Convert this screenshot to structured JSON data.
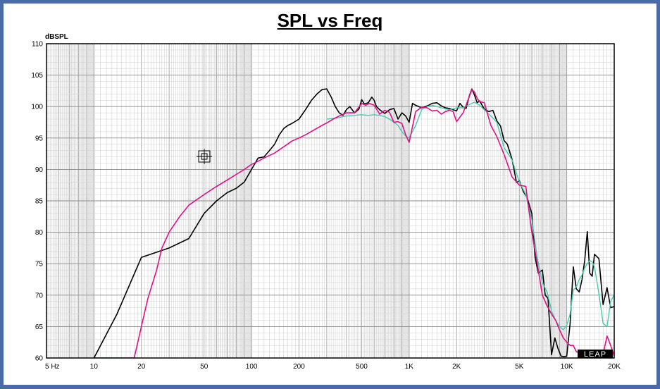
{
  "chart_data": {
    "type": "line",
    "title": "SPL vs Freq",
    "ylabel": "dBSPL",
    "xlabel": "",
    "xscale": "log",
    "xlim": [
      5,
      20000
    ],
    "ylim": [
      60,
      110
    ],
    "grid": true,
    "y_ticks": [
      60,
      65,
      70,
      75,
      80,
      85,
      90,
      95,
      100,
      105,
      110
    ],
    "x_ticks": [
      {
        "value": 5,
        "label": "5  Hz"
      },
      {
        "value": 10,
        "label": "10"
      },
      {
        "value": 20,
        "label": "20"
      },
      {
        "value": 50,
        "label": "50"
      },
      {
        "value": 100,
        "label": "100"
      },
      {
        "value": 200,
        "label": "200"
      },
      {
        "value": 500,
        "label": "500"
      },
      {
        "value": 1000,
        "label": "1K"
      },
      {
        "value": 2000,
        "label": "2K"
      },
      {
        "value": 5000,
        "label": "5K"
      },
      {
        "value": 10000,
        "label": "10K"
      },
      {
        "value": 20000,
        "label": "20K"
      }
    ],
    "series": [
      {
        "color": "#000000",
        "x": [
          10,
          14,
          20,
          30,
          40,
          50,
          60,
          70,
          80,
          90,
          100,
          110,
          120,
          130,
          140,
          150,
          160,
          170,
          180,
          200,
          220,
          240,
          260,
          280,
          300,
          320,
          340,
          360,
          380,
          400,
          420,
          450,
          480,
          500,
          520,
          550,
          580,
          600,
          620,
          650,
          700,
          750,
          800,
          850,
          900,
          950,
          1000,
          1050,
          1100,
          1200,
          1300,
          1400,
          1500,
          1600,
          1700,
          1800,
          2000,
          2100,
          2200,
          2300,
          2400,
          2500,
          2600,
          2700,
          2800,
          3000,
          3200,
          3400,
          3600,
          3800,
          4000,
          4200,
          4500,
          4800,
          5000,
          5300,
          5600,
          6000,
          6300,
          6600,
          7000,
          7300,
          7600,
          8000,
          8400,
          8800,
          9200,
          9600,
          10000,
          10500,
          11000,
          11500,
          12000,
          12500,
          13000,
          13500,
          14000,
          14500,
          15000,
          16000,
          17000,
          18000,
          19000,
          20000
        ],
        "y": [
          60,
          67,
          76,
          77.5,
          79,
          83,
          85,
          86.3,
          87,
          88,
          90,
          91.8,
          92,
          93,
          94,
          95.5,
          96.5,
          97,
          97.3,
          98,
          99.5,
          101,
          102,
          102.7,
          102.8,
          101.5,
          100,
          99,
          98.6,
          99.5,
          100,
          99,
          99.6,
          101.1,
          100.4,
          100.6,
          101.5,
          101,
          100,
          99.5,
          98.9,
          99.5,
          99.7,
          98,
          99,
          98.5,
          97.5,
          100.5,
          100.2,
          99.8,
          100.1,
          100.5,
          100.6,
          100.1,
          99.8,
          99.7,
          99.3,
          100.5,
          99.9,
          99.7,
          101.6,
          102.8,
          101.8,
          100.6,
          100.9,
          99.6,
          99.2,
          99.4,
          97.7,
          96.9,
          94.6,
          94,
          91.6,
          87.9,
          88.2,
          86.5,
          85.5,
          83,
          76,
          73.5,
          74,
          70,
          69.5,
          60.5,
          63.2,
          61.5,
          60.3,
          60.2,
          60.3,
          65.5,
          74.5,
          71,
          70.5,
          72.5,
          75.5,
          80.1,
          73.5,
          73,
          76.5,
          75.8,
          68.5,
          71.2,
          68,
          68.2
        ]
      },
      {
        "color": "#44ccaa",
        "x": [
          300,
          350,
          400,
          450,
          500,
          550,
          600,
          650,
          700,
          750,
          800,
          850,
          900,
          950,
          1000,
          1100,
          1200,
          1300,
          1400,
          1500,
          1600,
          1800,
          2000,
          2200,
          2400,
          2600,
          2800,
          3000,
          3300,
          3600,
          4000,
          4500,
          5000,
          5500,
          6000,
          6500,
          7000,
          7500,
          8000,
          8500,
          9000,
          9500,
          10000,
          10500,
          11000,
          11500,
          12000,
          12500,
          13000,
          13500,
          14000,
          14500,
          15000,
          16000,
          17000,
          18000,
          19000,
          20000
        ],
        "y": [
          98,
          98.2,
          98.5,
          98.6,
          98.7,
          98.6,
          98.7,
          98.6,
          98.4,
          98,
          97.5,
          97,
          96,
          95.3,
          95,
          97,
          99.5,
          100,
          100.2,
          100,
          99.8,
          99.5,
          99.8,
          99.8,
          100.3,
          100.7,
          100.2,
          99.5,
          98.5,
          97.5,
          93.5,
          91.5,
          88,
          86,
          82,
          76,
          72,
          70.5,
          67.5,
          66,
          65,
          64.5,
          65.2,
          67,
          70.8,
          71.3,
          72.5,
          73.2,
          74.3,
          75,
          75.5,
          75.3,
          74.5,
          70.2,
          65.5,
          65,
          69,
          70.1
        ]
      },
      {
        "color": "#dd1188",
        "x": [
          10,
          15,
          18,
          20,
          22,
          25,
          27,
          30,
          35,
          40,
          45,
          50,
          60,
          70,
          80,
          90,
          100,
          110,
          120,
          140,
          160,
          180,
          200,
          220,
          250,
          280,
          300,
          330,
          360,
          400,
          450,
          500,
          530,
          560,
          600,
          650,
          700,
          750,
          800,
          850,
          900,
          950,
          1000,
          1100,
          1200,
          1300,
          1400,
          1500,
          1600,
          1700,
          1800,
          1900,
          2000,
          2200,
          2400,
          2500,
          2600,
          2700,
          2800,
          3000,
          3300,
          3600,
          4000,
          4500,
          5000,
          5500,
          6000,
          6500,
          7000,
          7500,
          8000,
          8500,
          9000,
          9500,
          10000,
          10500,
          11000,
          11500,
          12000,
          12500,
          13000,
          14000,
          15000,
          16000,
          17000,
          18000,
          19000,
          20000
        ],
        "y": [
          60,
          60,
          60,
          65,
          69.5,
          74,
          77.5,
          80,
          82.5,
          84.3,
          85.2,
          86,
          87.3,
          88.3,
          89.2,
          90,
          90.8,
          91.3,
          91.8,
          92.6,
          93.6,
          94.5,
          95,
          95.5,
          96.3,
          97,
          97.4,
          98,
          98.5,
          99,
          99,
          100.5,
          100.2,
          100.5,
          100.2,
          98.8,
          99.4,
          99.1,
          97.5,
          97.6,
          97.3,
          95.5,
          94.3,
          99.2,
          99.9,
          99.8,
          99.3,
          99.4,
          98.8,
          99.2,
          99.4,
          99.2,
          97.6,
          99,
          101.5,
          102.7,
          102.3,
          101.3,
          100.8,
          100.6,
          97,
          95.2,
          92.4,
          88.8,
          87.5,
          87.3,
          80,
          75,
          70,
          68.3,
          67,
          66,
          64.5,
          63.2,
          62.5,
          62,
          62,
          61,
          60.8,
          60.5,
          60.3,
          60.2,
          60.2,
          60.2,
          60.6,
          63.5,
          62,
          60.3
        ]
      }
    ],
    "annotations": [
      "LEAP"
    ]
  }
}
